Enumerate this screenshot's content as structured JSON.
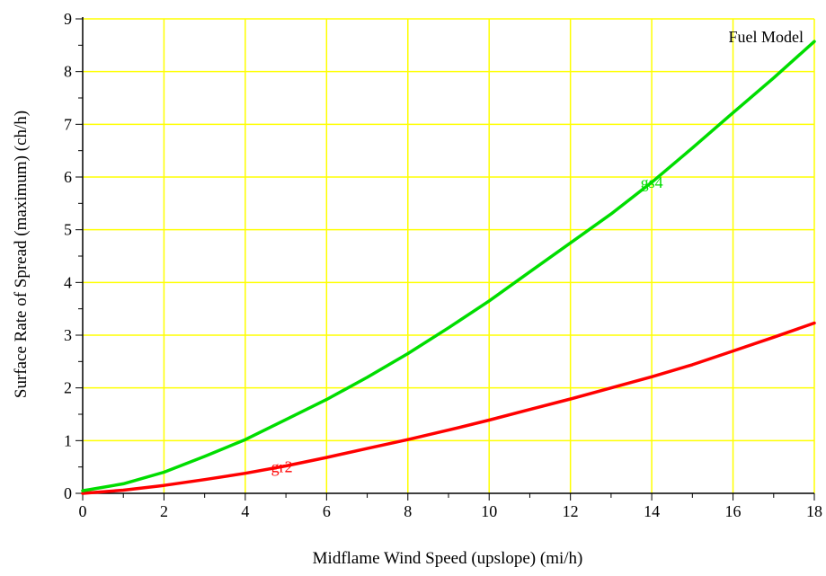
{
  "chart_data": {
    "type": "line",
    "title": "",
    "xlabel": "Midflame Wind Speed (upslope) (mi/h)",
    "ylabel": "Surface Rate of Spread (maximum) (ch/h)",
    "xlim": [
      0,
      18
    ],
    "ylim": [
      0,
      9
    ],
    "x_ticks": [
      0,
      2,
      4,
      6,
      8,
      10,
      12,
      14,
      16,
      18
    ],
    "y_ticks": [
      0,
      1,
      2,
      3,
      4,
      5,
      6,
      7,
      8,
      9
    ],
    "x_minor_step": 1,
    "y_minor_step": 0.5,
    "grid": true,
    "grid_color": "#ffff00",
    "legend_title": "Fuel Model",
    "legend_position": "top-right",
    "series": [
      {
        "name": "gr2",
        "color": "#ff0000",
        "x": [
          0,
          1,
          2,
          3,
          4,
          5,
          6,
          7,
          8,
          9,
          10,
          11,
          12,
          13,
          14,
          15,
          16,
          17,
          18
        ],
        "values": [
          0.0,
          0.06,
          0.15,
          0.26,
          0.38,
          0.52,
          0.68,
          0.85,
          1.02,
          1.2,
          1.39,
          1.59,
          1.79,
          2.0,
          2.21,
          2.44,
          2.7,
          2.96,
          3.23
        ]
      },
      {
        "name": "gs4",
        "color": "#00dd00",
        "x": [
          0,
          1,
          2,
          3,
          4,
          5,
          6,
          7,
          8,
          9,
          10,
          11,
          12,
          13,
          14,
          15,
          16,
          17,
          18
        ],
        "values": [
          0.05,
          0.18,
          0.4,
          0.7,
          1.02,
          1.4,
          1.78,
          2.2,
          2.65,
          3.14,
          3.65,
          4.2,
          4.75,
          5.3,
          5.9,
          6.55,
          7.22,
          7.88,
          8.57
        ]
      }
    ]
  }
}
